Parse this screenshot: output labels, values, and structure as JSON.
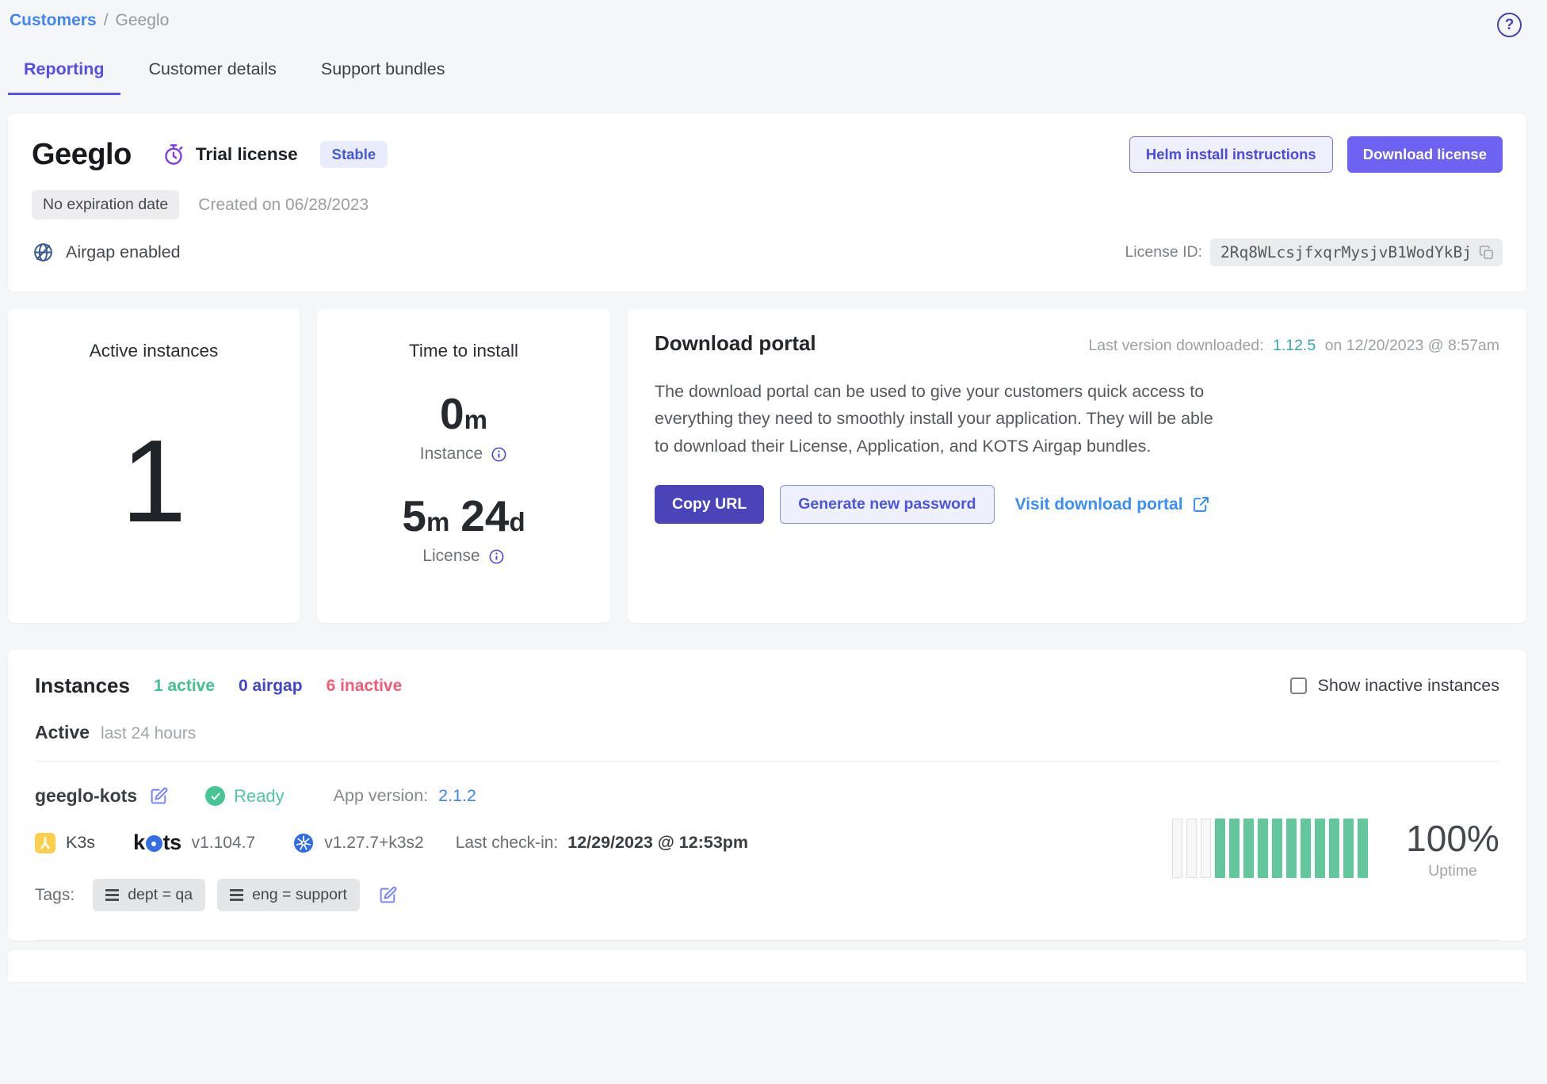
{
  "breadcrumb": {
    "link": "Customers",
    "separator": "/",
    "current": "Geeglo"
  },
  "help_icon": "?",
  "tabs": [
    {
      "label": "Reporting",
      "active": true
    },
    {
      "label": "Customer details",
      "active": false
    },
    {
      "label": "Support bundles",
      "active": false
    }
  ],
  "license_card": {
    "name": "Geeglo",
    "license_type": "Trial license",
    "channel_badge": "Stable",
    "expiration_badge": "No expiration date",
    "created": "Created on 06/28/2023",
    "airgap": "Airgap enabled",
    "helm_button": "Helm install instructions",
    "download_button": "Download license",
    "license_id_label": "License ID:",
    "license_id": "2Rq8WLcsjfxqrMysjvB1WodYkBj"
  },
  "metrics": {
    "active_instances": {
      "title": "Active instances",
      "value": "1"
    },
    "time_to_install": {
      "title": "Time to install",
      "instance": {
        "value": "0",
        "unit": "m",
        "label": "Instance"
      },
      "license": {
        "value1": "5",
        "unit1": "m",
        "value2": "24",
        "unit2": "d",
        "label": "License"
      }
    }
  },
  "download_portal": {
    "title": "Download portal",
    "last_version_label": "Last version downloaded:",
    "last_version": "1.12.5",
    "last_version_suffix": "on 12/20/2023 @ 8:57am",
    "description": "The download portal can be used to give your customers quick access to everything they need to smoothly install your application. They will be able to download their License, Application, and KOTS Airgap bundles.",
    "copy_url_button": "Copy URL",
    "generate_password_button": "Generate new password",
    "visit_link": "Visit download portal"
  },
  "instances": {
    "title": "Instances",
    "counts": [
      {
        "label": "1 active",
        "color": "#45c08c"
      },
      {
        "label": "0 airgap",
        "color": "#4144cd"
      },
      {
        "label": "6 inactive",
        "color": "#f25c78"
      }
    ],
    "show_inactive_label": "Show inactive instances",
    "section_label": "Active",
    "section_sublabel": "last 24 hours",
    "instance": {
      "name": "geeglo-kots",
      "status": "Ready",
      "app_version_label": "App version:",
      "app_version": "2.1.2",
      "distribution": "K3s",
      "kots_wordmark": {
        "part1": "k",
        "part2": "ts"
      },
      "kots_version": "v1.104.7",
      "k8s_version": "v1.27.7+k3s2",
      "last_checkin_label": "Last check-in:",
      "last_checkin": "12/29/2023 @ 12:53pm",
      "tags_label": "Tags:",
      "tags": [
        "dept = qa",
        "eng = support"
      ],
      "uptime": {
        "value": "100%",
        "label": "Uptime",
        "bars": [
          0,
          0,
          0,
          1,
          1,
          1,
          1,
          1,
          1,
          1,
          1,
          1,
          1,
          1
        ]
      }
    }
  },
  "colors": {
    "accent_indigo": "#5a4ff2",
    "primary_button": "#6e62f2",
    "dark_button": "#4b44b8",
    "link_blue": "#4285f4",
    "version_link_teal": "#3aa4b5",
    "visit_link_blue": "#3d8ef8",
    "success_green": "#47c494",
    "active_count_green": "#45c08c",
    "airgap_count_indigo": "#4144cd",
    "inactive_count_pink": "#f25c78",
    "uptime_bar_green": "#64c79b",
    "k3s_yellow": "#fbcf4d",
    "kubernetes_blue": "#326ce5",
    "edit_icon_purple": "#7b87fb",
    "trial_icon_purple": "#7c3aed",
    "airgap_icon_blue": "#39598f"
  },
  "icons": [
    "help-icon",
    "stopwatch-icon",
    "globe-airgap-icon",
    "copy-icon",
    "info-icon",
    "check-circle-icon",
    "edit-icon",
    "k3s-icon",
    "kots-logo-icon",
    "kubernetes-icon",
    "tag-lines-icon",
    "external-link-icon",
    "checkbox"
  ]
}
